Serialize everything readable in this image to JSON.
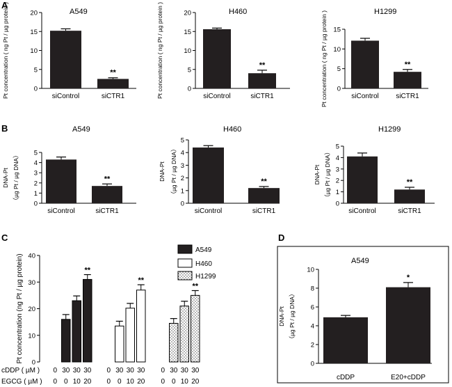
{
  "colors": {
    "bar": "#231f20",
    "axis": "#000000",
    "error": "#000000"
  },
  "chart_data": [
    {
      "panel": "A",
      "type": "bar",
      "title": "A549",
      "ylabel": "Pt concentration ( ng Pt / µg protein )",
      "ylim": [
        0,
        20
      ],
      "yticks": [
        0,
        5,
        10,
        15,
        20
      ],
      "categories": [
        "siControl",
        "siCTR1"
      ],
      "values": [
        15.2,
        2.5
      ],
      "errors": [
        0.5,
        0.3
      ],
      "annotations": [
        "",
        "**"
      ]
    },
    {
      "panel": "A",
      "type": "bar",
      "title": "H460",
      "ylabel": "Pt concentration ( ng Pt / µg protein )",
      "ylim": [
        0,
        20
      ],
      "yticks": [
        0,
        5,
        10,
        15,
        20
      ],
      "categories": [
        "siControl",
        "siCTR1"
      ],
      "values": [
        15.6,
        4.0
      ],
      "errors": [
        0.3,
        0.8
      ],
      "annotations": [
        "",
        "**"
      ]
    },
    {
      "panel": "A",
      "type": "bar",
      "title": "H1299",
      "ylabel": "Pt concentration ( ng Pt / µg protein )",
      "ylim": [
        0,
        15
      ],
      "yticks": [
        0,
        5,
        10,
        15
      ],
      "categories": [
        "siControl",
        "siCTR1"
      ],
      "values": [
        12.1,
        4.2
      ],
      "errors": [
        0.6,
        0.6
      ],
      "annotations": [
        "",
        "**"
      ]
    },
    {
      "panel": "B",
      "type": "bar",
      "title": "A549",
      "ylabel_line1": "DNA-Pt",
      "ylabel_line2": "（µg Pt / µg DNA）",
      "ylim": [
        0,
        5
      ],
      "yticks": [
        0,
        1,
        2,
        3,
        4,
        5
      ],
      "categories": [
        "siControl",
        "siCTR1"
      ],
      "values": [
        4.3,
        1.7
      ],
      "errors": [
        0.25,
        0.2
      ],
      "annotations": [
        "",
        "**"
      ]
    },
    {
      "panel": "B",
      "type": "bar",
      "title": "H460",
      "ylabel_line1": "DNA-Pt",
      "ylabel_line2": "（µg Pt / µg DNA）",
      "ylim": [
        0,
        5
      ],
      "yticks": [
        0,
        1,
        2,
        3,
        4,
        5
      ],
      "categories": [
        "siControl",
        "siCTR1"
      ],
      "values": [
        4.4,
        1.2
      ],
      "errors": [
        0.15,
        0.12
      ],
      "annotations": [
        "",
        "**"
      ]
    },
    {
      "panel": "B",
      "type": "bar",
      "title": "H1299",
      "ylabel_line1": "DNA-Pt",
      "ylabel_line2": "（µg Pt / µg DNA）",
      "ylim": [
        0,
        5
      ],
      "yticks": [
        0,
        1,
        2,
        3,
        4,
        5
      ],
      "categories": [
        "siControl",
        "siCTR1"
      ],
      "values": [
        4.1,
        1.2
      ],
      "errors": [
        0.3,
        0.2
      ],
      "annotations": [
        "",
        "**"
      ]
    },
    {
      "panel": "C",
      "type": "bar",
      "ylabel": "Pt concentration (ng Pt / µg protein)",
      "ylim": [
        0,
        40
      ],
      "yticks": [
        0,
        10,
        20,
        30,
        40
      ],
      "row_labels": [
        "cDDP ( µM )",
        "EGCG ( µM )"
      ],
      "series": [
        {
          "name": "A549",
          "fill": "solid",
          "cddp": [
            "0",
            "30",
            "30",
            "30"
          ],
          "egcg": [
            "0",
            "0",
            "10",
            "20"
          ],
          "values": [
            0,
            16,
            23,
            31
          ],
          "errors": [
            0,
            1.8,
            1.8,
            1.8
          ],
          "annotations": [
            "",
            "",
            "",
            "**"
          ]
        },
        {
          "name": "H460",
          "fill": "white",
          "cddp": [
            "0",
            "30",
            "30",
            "30"
          ],
          "egcg": [
            "0",
            "0",
            "10",
            "20"
          ],
          "values": [
            0,
            13.5,
            20.2,
            27
          ],
          "errors": [
            0,
            1.8,
            1.8,
            2.0
          ],
          "annotations": [
            "",
            "",
            "",
            "**"
          ]
        },
        {
          "name": "H1299",
          "fill": "dotted",
          "cddp": [
            "0",
            "30",
            "30",
            "30"
          ],
          "egcg": [
            "0",
            "0",
            "10",
            "20"
          ],
          "values": [
            0,
            14.5,
            21,
            25
          ],
          "errors": [
            0,
            1.8,
            1.8,
            1.8
          ],
          "annotations": [
            "",
            "",
            "",
            "**"
          ]
        }
      ]
    },
    {
      "panel": "D",
      "type": "bar",
      "title": "A549",
      "ylabel_line1": "DNA-Pt",
      "ylabel_line2": "（µg Pt / µg DNA）",
      "ylim": [
        0,
        10
      ],
      "yticks": [
        0,
        2,
        4,
        6,
        8,
        10
      ],
      "categories": [
        "cDDP",
        "E20+cDDP"
      ],
      "values": [
        4.9,
        8.1
      ],
      "errors": [
        0.2,
        0.5
      ],
      "annotations": [
        "",
        "*"
      ]
    }
  ],
  "panel_labels": [
    "A",
    "B",
    "C",
    "D"
  ]
}
